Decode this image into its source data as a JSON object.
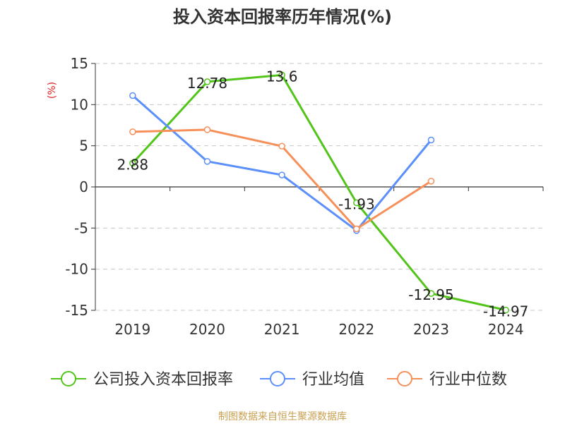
{
  "chart_data": {
    "type": "line",
    "title": "投入资本回报率历年情况(%)",
    "ylabel": "(%)",
    "xlabel": "",
    "categories": [
      "2019",
      "2020",
      "2021",
      "2022",
      "2023",
      "2024"
    ],
    "ylim": [
      -15,
      15
    ],
    "yticks": [
      15,
      10,
      5,
      0,
      -5,
      -10,
      -15
    ],
    "grid": true,
    "legend_position": "bottom",
    "series": [
      {
        "name": "公司投入资本回报率",
        "color": "#52c41a",
        "values": [
          2.88,
          12.78,
          13.6,
          -1.93,
          -12.95,
          -14.97
        ],
        "labels": [
          "2.88",
          "12.78",
          "13.6",
          "-1.93",
          "-12.95",
          "-14.97"
        ]
      },
      {
        "name": "行业均值",
        "color": "#5b8ff9",
        "values": [
          11.1,
          3.1,
          1.45,
          -5.3,
          5.7,
          null
        ]
      },
      {
        "name": "行业中位数",
        "color": "#f6905a",
        "values": [
          6.7,
          6.95,
          4.95,
          -5.1,
          0.7,
          null
        ]
      }
    ]
  },
  "source": "制图数据来自恒生聚源数据库",
  "colors": {
    "title": "#333333",
    "axis": "#333333",
    "grid": "#c8c8c8",
    "ylabel": "#e02020",
    "source": "#c8a050"
  }
}
